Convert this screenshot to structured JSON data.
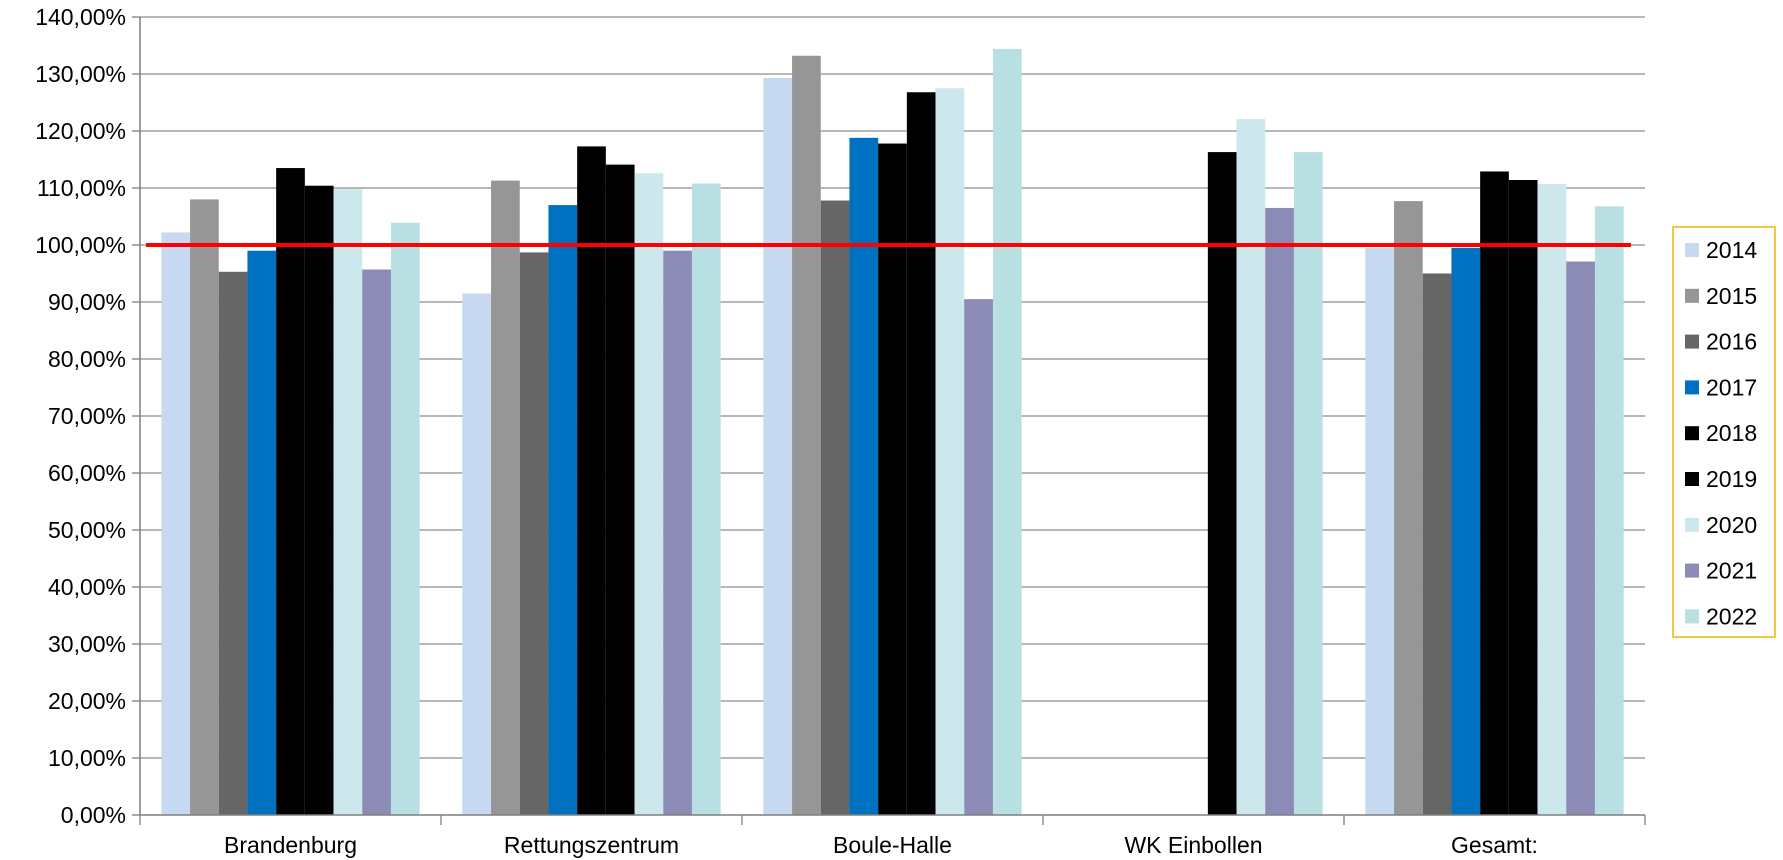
{
  "chart_data": {
    "type": "bar",
    "title": "",
    "xlabel": "",
    "ylabel": "",
    "ylim": [
      0,
      1.4
    ],
    "yticks": [
      0,
      0.1,
      0.2,
      0.3,
      0.4,
      0.5,
      0.6,
      0.7,
      0.8,
      0.9,
      1.0,
      1.1,
      1.2,
      1.3,
      1.4
    ],
    "yticklabels": [
      "0,00%",
      "10,00%",
      "20,00%",
      "30,00%",
      "40,00%",
      "50,00%",
      "60,00%",
      "70,00%",
      "80,00%",
      "90,00%",
      "100,00%",
      "110,00%",
      "120,00%",
      "130,00%",
      "140,00%"
    ],
    "categories": [
      "Brandenburg",
      "Rettungszentrum",
      "Boule-Halle",
      "WK Einbollen",
      "Gesamt:"
    ],
    "grid": true,
    "legend_position": "right",
    "reference_line": {
      "value": 1.0,
      "color": "#ff0000"
    },
    "series": [
      {
        "name": "2014",
        "color": "#c6d9f1",
        "values": [
          1.022,
          0.915,
          1.293,
          null,
          0.995
        ]
      },
      {
        "name": "2015",
        "color": "#969696",
        "values": [
          1.08,
          1.113,
          1.332,
          null,
          1.077
        ]
      },
      {
        "name": "2016",
        "color": "#666666",
        "values": [
          0.953,
          0.987,
          1.078,
          null,
          0.95
        ]
      },
      {
        "name": "2017",
        "color": "#0070c0",
        "values": [
          0.99,
          1.07,
          1.188,
          null,
          0.995
        ]
      },
      {
        "name": "2018",
        "color": "#000000",
        "values": [
          1.135,
          1.173,
          1.178,
          null,
          1.129
        ]
      },
      {
        "name": "2019",
        "color": "#000000",
        "values": [
          1.104,
          1.141,
          1.268,
          1.163,
          1.114
        ]
      },
      {
        "name": "2020",
        "color": "#cde8ec",
        "values": [
          1.098,
          1.126,
          1.275,
          1.221,
          1.107
        ]
      },
      {
        "name": "2021",
        "color": "#8b8bb6",
        "values": [
          0.957,
          0.99,
          0.905,
          1.065,
          0.971
        ]
      },
      {
        "name": "2022",
        "color": "#b8e0e3",
        "values": [
          1.039,
          1.108,
          1.344,
          1.163,
          1.068
        ]
      }
    ]
  }
}
